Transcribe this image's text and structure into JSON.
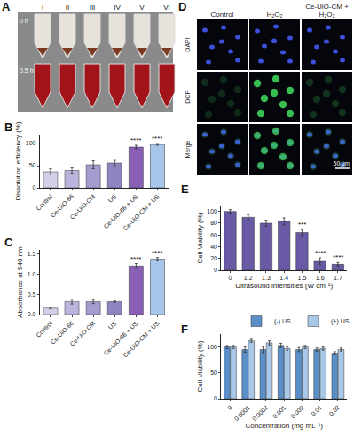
{
  "photo_panels": [
    {
      "label": "A",
      "tube_labels": [
        "I",
        "II",
        "III",
        "IV",
        "V",
        "VI"
      ],
      "time_labels": [
        "0 h",
        "0.5 h"
      ]
    },
    {
      "label": "D",
      "column_labels": [
        "Control",
        "H₂O₂",
        "Ce-UiO-CM + H₂O₂"
      ],
      "row_labels": [
        "DAPI",
        "DCF",
        "Merge"
      ],
      "scale_bar": "50 μm"
    }
  ],
  "chart_data": [
    {
      "title": "B",
      "type": "bar",
      "y_label": "Dissolution efficiency (%)",
      "categories": [
        "Control",
        "Ce-UiO-66",
        "Ce-UiO-CM",
        "US",
        "Ce-UiO-66 + US",
        "Ce-UiO-CM + US"
      ],
      "values": [
        36,
        39,
        52,
        56,
        92,
        98
      ],
      "errors": [
        7,
        6,
        9,
        6,
        4,
        2
      ],
      "colors": [
        "#d3cfe9",
        "#bbb4dd",
        "#a49bcf",
        "#8e84c0",
        "#8a5fb6",
        "#a7c6ea"
      ],
      "significance": [
        null,
        null,
        null,
        null,
        "****",
        "****"
      ],
      "ylim": [
        0,
        120
      ],
      "yticks": [
        0,
        50,
        100
      ],
      "grid": false
    },
    {
      "title": "C",
      "type": "bar",
      "y_label": "Absorbance at 540 nm",
      "categories": [
        "Control",
        "Ce-UiO-66",
        "Ce-UiO-CM",
        "US",
        "Ce-UiO-66 + US",
        "Ce-UiO-CM + US"
      ],
      "values": [
        0.16,
        0.32,
        0.32,
        0.32,
        1.2,
        1.37
      ],
      "errors": [
        0.02,
        0.06,
        0.05,
        0.02,
        0.06,
        0.04
      ],
      "colors": [
        "#d3cfe9",
        "#bbb4dd",
        "#a49bcf",
        "#8e84c0",
        "#8a5fb6",
        "#a7c6ea"
      ],
      "significance": [
        null,
        null,
        null,
        null,
        "****",
        "****"
      ],
      "ylim": [
        0,
        1.6
      ],
      "yticks": [
        {
          "value": 0,
          "label": "0.0"
        },
        0.5,
        {
          "value": 1,
          "label": "1.0"
        },
        1.5
      ],
      "grid": false
    },
    {
      "title": "E",
      "type": "bar",
      "y_label": "Cell Viability (%)",
      "x_label": "Ultrasound intensities (W cm⁻²)",
      "categories": [
        "0",
        "1.2",
        "1.3",
        "1.4",
        "1.5",
        "1.6",
        "1.7"
      ],
      "values": [
        100,
        90,
        80,
        83,
        64,
        15,
        10
      ],
      "errors": [
        3,
        4,
        5,
        6,
        5,
        6,
        3
      ],
      "color": "#6a5aa6",
      "significance": [
        null,
        null,
        null,
        null,
        "***",
        "****",
        "****"
      ],
      "ylim": [
        0,
        110
      ],
      "yticks": [
        0,
        20,
        40,
        60,
        80,
        100
      ],
      "grid": false
    },
    {
      "title": "F",
      "type": "bar",
      "y_label": "Cell Viability (%)",
      "x_label": "Concentration (mg mL⁻¹)",
      "categories": [
        "0",
        "0.0001",
        "0.0002",
        "0.001",
        "0.002",
        "0.01",
        "0.02"
      ],
      "series": [
        {
          "name": "(-) US",
          "color": "#5b8fc7",
          "values": [
            100,
            95,
            95,
            103,
            95,
            95,
            88
          ],
          "errors": [
            3,
            5,
            6,
            4,
            4,
            3,
            3
          ]
        },
        {
          "name": "(+) US",
          "color": "#a9c8e8",
          "values": [
            100,
            112,
            108,
            97,
            100,
            97,
            95
          ],
          "errors": [
            3,
            3,
            4,
            3,
            3,
            3,
            3
          ]
        }
      ],
      "legend": "top",
      "ylim": [
        0,
        125
      ],
      "yticks": [
        0,
        50,
        100
      ],
      "grid": false
    }
  ]
}
